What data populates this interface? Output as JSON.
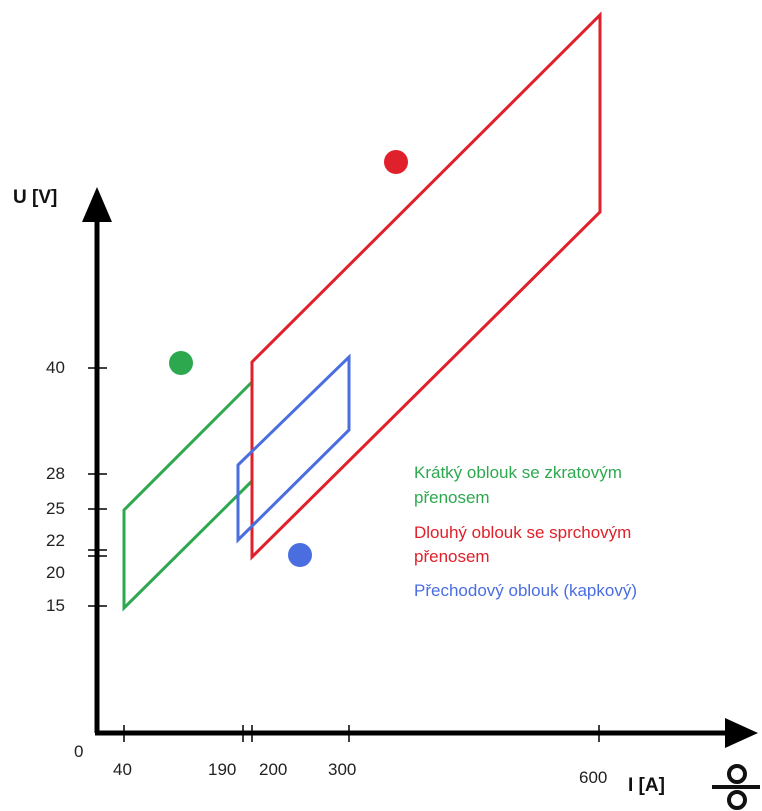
{
  "chart_data": {
    "type": "diagram",
    "axes": {
      "y_label": "U [V]",
      "x_label": "I [A]",
      "origin_label": "0",
      "x_ticks": [
        "40",
        "190",
        "200",
        "300",
        "600"
      ],
      "y_ticks": [
        "40",
        "28",
        "25",
        "22",
        "20",
        "15"
      ]
    },
    "legend": [
      {
        "lines": [
          "Krátký oblouk se zkratovým",
          "přenosem"
        ],
        "color": "#2ea84f"
      },
      {
        "lines": [
          "Dlouhý oblouk se sprchovým",
          "přenosem"
        ],
        "color": "#e0202a"
      },
      {
        "lines": [
          "Přechodový oblouk (kapkový)"
        ],
        "color": "#4a6ee0"
      }
    ],
    "regions": [
      {
        "name": "short-arc",
        "color": "#2ea84f"
      },
      {
        "name": "spray-arc",
        "color": "#e0202a"
      },
      {
        "name": "globular-arc",
        "color": "#4a6ee0"
      }
    ],
    "markers": [
      {
        "name": "green-dot",
        "color": "#2ea84f"
      },
      {
        "name": "red-dot",
        "color": "#e0202a"
      },
      {
        "name": "blue-dot",
        "color": "#4a6ee0"
      }
    ]
  }
}
